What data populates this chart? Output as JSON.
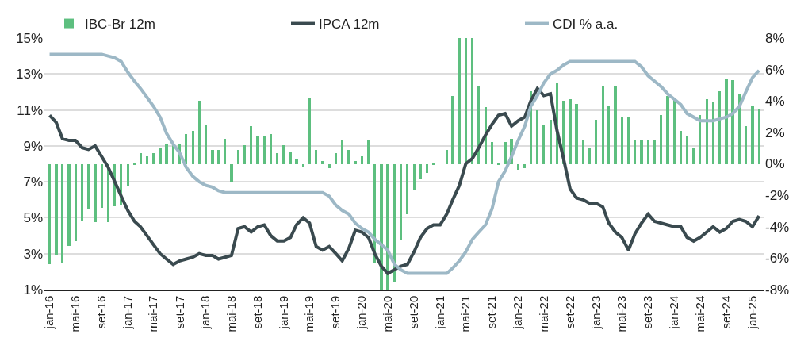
{
  "chart_data": {
    "type": "line",
    "x": [
      "2016-01",
      "2016-02",
      "2016-03",
      "2016-04",
      "2016-05",
      "2016-06",
      "2016-07",
      "2016-08",
      "2016-09",
      "2016-10",
      "2016-11",
      "2016-12",
      "2017-01",
      "2017-02",
      "2017-03",
      "2017-04",
      "2017-05",
      "2017-06",
      "2017-07",
      "2017-08",
      "2017-09",
      "2017-10",
      "2017-11",
      "2017-12",
      "2018-01",
      "2018-02",
      "2018-03",
      "2018-04",
      "2018-05",
      "2018-06",
      "2018-07",
      "2018-08",
      "2018-09",
      "2018-10",
      "2018-11",
      "2018-12",
      "2019-01",
      "2019-02",
      "2019-03",
      "2019-04",
      "2019-05",
      "2019-06",
      "2019-07",
      "2019-08",
      "2019-09",
      "2019-10",
      "2019-11",
      "2019-12",
      "2020-01",
      "2020-02",
      "2020-03",
      "2020-04",
      "2020-05",
      "2020-06",
      "2020-07",
      "2020-08",
      "2020-09",
      "2020-10",
      "2020-11",
      "2020-12",
      "2021-01",
      "2021-02",
      "2021-03",
      "2021-04",
      "2021-05",
      "2021-06",
      "2021-07",
      "2021-08",
      "2021-09",
      "2021-10",
      "2021-11",
      "2021-12",
      "2022-01",
      "2022-02",
      "2022-03",
      "2022-04",
      "2022-05",
      "2022-06",
      "2022-07",
      "2022-08",
      "2022-09",
      "2022-10",
      "2022-11",
      "2022-12",
      "2023-01",
      "2023-02",
      "2023-03",
      "2023-04",
      "2023-05",
      "2023-06",
      "2023-07",
      "2023-08",
      "2023-09",
      "2023-10",
      "2023-11",
      "2023-12",
      "2024-01",
      "2024-02",
      "2024-03",
      "2024-04",
      "2024-05",
      "2024-06",
      "2024-07",
      "2024-08",
      "2024-09",
      "2024-10",
      "2024-11",
      "2024-12",
      "2025-01",
      "2025-02"
    ],
    "series": [
      {
        "name": "IBC-Br 12m",
        "type": "bar",
        "axis": "y2",
        "color": "#5dbf7f",
        "values": [
          -6.4,
          -5.8,
          -6.3,
          -5.2,
          -4.9,
          -3.6,
          -2.9,
          -3.7,
          -2.8,
          -3.7,
          -2.7,
          -2.6,
          -1.4,
          -0.1,
          0.7,
          0.5,
          0.7,
          1.0,
          1.3,
          1.3,
          1.3,
          1.9,
          2.1,
          4.0,
          2.5,
          0.9,
          0.9,
          1.6,
          -1.2,
          0.9,
          1.2,
          2.4,
          1.8,
          1.8,
          1.9,
          0.7,
          1.2,
          0.8,
          0.3,
          -0.2,
          4.2,
          0.9,
          0.2,
          -0.3,
          0.7,
          1.5,
          0.9,
          0.2,
          0.5,
          1.5,
          -6.3,
          -8,
          -8,
          -7.5,
          -4.8,
          -3.2,
          -1.7,
          -1.0,
          -0.6,
          -0.1,
          0,
          0.9,
          4.3,
          8,
          8,
          8,
          4.9,
          3.6,
          1.4,
          -0.1,
          1.4,
          1.6,
          -0.4,
          -0.3,
          4.6,
          3.4,
          2.5,
          2.8,
          5.1,
          4.0,
          4.1,
          3.8,
          1.5,
          1.0,
          2.8,
          4.9,
          3.7,
          4.9,
          3.0,
          3.0,
          1.5,
          1.5,
          1.5,
          1.5,
          3.1,
          4.3,
          4.1,
          2.1,
          1.8,
          1.0,
          3.1,
          4.1,
          3.9,
          4.6,
          5.4,
          5.3,
          4.4,
          2.4,
          3.7,
          3.5
        ]
      },
      {
        "name": "IPCA 12m",
        "axis": "y",
        "color": "#3a4a4f",
        "values": [
          10.7,
          10.3,
          9.4,
          9.3,
          9.3,
          8.9,
          8.8,
          9.0,
          8.4,
          7.8,
          7.0,
          6.2,
          5.4,
          4.8,
          4.5,
          4.0,
          3.5,
          3.0,
          2.7,
          2.4,
          2.6,
          2.7,
          2.8,
          3.0,
          2.9,
          2.9,
          2.7,
          2.8,
          2.9,
          4.4,
          4.5,
          4.2,
          4.5,
          4.6,
          4.0,
          3.7,
          3.7,
          3.9,
          4.6,
          5.0,
          4.7,
          3.4,
          3.2,
          3.4,
          3.0,
          2.6,
          3.3,
          4.3,
          4.2,
          3.9,
          3.0,
          2.3,
          1.9,
          2.1,
          2.3,
          2.4,
          3.1,
          3.9,
          4.4,
          4.6,
          4.6,
          5.2,
          6.0,
          6.8,
          8.0,
          8.3,
          8.9,
          9.6,
          10.2,
          10.7,
          10.8,
          10.1,
          10.4,
          10.6,
          11.5,
          12.2,
          11.8,
          11.9,
          9.9,
          8.3,
          6.6,
          6.1,
          6.0,
          5.8,
          5.8,
          5.6,
          4.7,
          4.2,
          3.9,
          3.2,
          4.1,
          4.7,
          5.2,
          4.8,
          4.7,
          4.6,
          4.5,
          4.5,
          3.9,
          3.7,
          3.9,
          4.2,
          4.5,
          4.2,
          4.4,
          4.8,
          4.9,
          4.8,
          4.5,
          5.1
        ]
      },
      {
        "name": "CDI % a.a.",
        "axis": "y",
        "color": "#9db8c6",
        "values": [
          14.1,
          14.1,
          14.1,
          14.1,
          14.1,
          14.1,
          14.1,
          14.1,
          14.1,
          14.0,
          13.9,
          13.7,
          13.1,
          12.6,
          12.2,
          11.7,
          11.2,
          10.6,
          9.7,
          9.1,
          8.6,
          7.8,
          7.3,
          7.0,
          6.8,
          6.7,
          6.5,
          6.4,
          6.4,
          6.4,
          6.4,
          6.4,
          6.4,
          6.4,
          6.4,
          6.4,
          6.4,
          6.4,
          6.4,
          6.4,
          6.4,
          6.4,
          6.4,
          6.2,
          5.7,
          5.4,
          5.2,
          4.7,
          4.4,
          4.2,
          3.8,
          3.5,
          3.2,
          2.4,
          2.1,
          1.9,
          1.9,
          1.9,
          1.9,
          1.9,
          1.9,
          1.9,
          2.2,
          2.6,
          3.1,
          3.8,
          4.2,
          4.6,
          5.5,
          7.0,
          7.6,
          8.4,
          9.3,
          10.1,
          11.2,
          11.8,
          12.5,
          13.0,
          13.2,
          13.5,
          13.7,
          13.7,
          13.7,
          13.7,
          13.7,
          13.7,
          13.7,
          13.7,
          13.7,
          13.7,
          13.7,
          13.4,
          12.9,
          12.6,
          12.3,
          11.9,
          11.6,
          11.3,
          10.8,
          10.6,
          10.4,
          10.4,
          10.4,
          10.5,
          10.6,
          10.8,
          11.2,
          12.0,
          12.8,
          13.2
        ]
      }
    ],
    "xlim": [
      "2015-12-04",
      "2025-02-26"
    ],
    "xticks": [
      {
        "value": "2016-01",
        "label": "jan-16"
      },
      {
        "value": "2016-05",
        "label": "mai-16"
      },
      {
        "value": "2016-09",
        "label": "set-16"
      },
      {
        "value": "2017-01",
        "label": "jan-17"
      },
      {
        "value": "2017-05",
        "label": "mai-17"
      },
      {
        "value": "2017-09",
        "label": "set-17"
      },
      {
        "value": "2018-01",
        "label": "jan-18"
      },
      {
        "value": "2018-05",
        "label": "mai-18"
      },
      {
        "value": "2018-09",
        "label": "set-18"
      },
      {
        "value": "2019-01",
        "label": "jan-19"
      },
      {
        "value": "2019-05",
        "label": "mai-19"
      },
      {
        "value": "2019-09",
        "label": "set-19"
      },
      {
        "value": "2020-01",
        "label": "jan-20"
      },
      {
        "value": "2020-05",
        "label": "mai-20"
      },
      {
        "value": "2020-09",
        "label": "set-20"
      },
      {
        "value": "2021-01",
        "label": "jan-21"
      },
      {
        "value": "2021-05",
        "label": "mai-21"
      },
      {
        "value": "2021-09",
        "label": "set-21"
      },
      {
        "value": "2022-01",
        "label": "jan-22"
      },
      {
        "value": "2022-05",
        "label": "mai-22"
      },
      {
        "value": "2022-09",
        "label": "set-22"
      },
      {
        "value": "2023-01",
        "label": "jan-23"
      },
      {
        "value": "2023-05",
        "label": "mai-23"
      },
      {
        "value": "2023-09",
        "label": "set-23"
      },
      {
        "value": "2024-01",
        "label": "jan-24"
      },
      {
        "value": "2024-05",
        "label": "mai-24"
      },
      {
        "value": "2024-09",
        "label": "set-24"
      },
      {
        "value": "2025-01",
        "label": "jan-25"
      }
    ],
    "ylim": [
      1,
      15
    ],
    "yticks": [
      {
        "value": 1,
        "label": "1%"
      },
      {
        "value": 3,
        "label": "3%"
      },
      {
        "value": 5,
        "label": "5%"
      },
      {
        "value": 7,
        "label": "7%"
      },
      {
        "value": 9,
        "label": "9%"
      },
      {
        "value": 11,
        "label": "11%"
      },
      {
        "value": 13,
        "label": "13%"
      },
      {
        "value": 15,
        "label": "15%"
      }
    ],
    "y2lim": [
      -8,
      8
    ],
    "y2ticks": [
      {
        "value": -8,
        "label": "-8%"
      },
      {
        "value": -6,
        "label": "-6%"
      },
      {
        "value": -4,
        "label": "-4%"
      },
      {
        "value": -2,
        "label": "-2%"
      },
      {
        "value": 0,
        "label": "0%"
      },
      {
        "value": 2,
        "label": "2%"
      },
      {
        "value": 4,
        "label": "4%"
      },
      {
        "value": 6,
        "label": "6%"
      },
      {
        "value": 8,
        "label": "8%"
      }
    ],
    "grid": "y",
    "legend": "top",
    "marker": "none",
    "line_style": "solid"
  }
}
